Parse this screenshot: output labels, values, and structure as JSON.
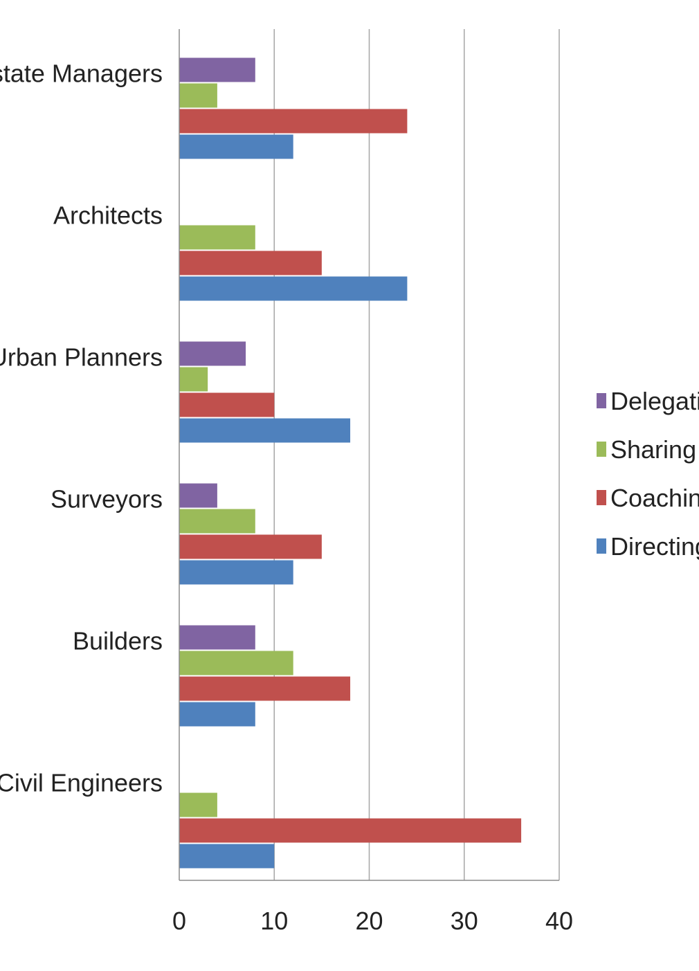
{
  "chart_data": {
    "type": "bar",
    "orientation": "horizontal",
    "categories": [
      "Civil Engineers",
      "Builders",
      "Surveyors",
      "Urban Planners",
      "Architects",
      "Estate Managers"
    ],
    "series": [
      {
        "name": "Directing",
        "color": "#4F81BD",
        "values": [
          10,
          8,
          12,
          18,
          24,
          12
        ]
      },
      {
        "name": "Coaching",
        "color": "#C0504D",
        "values": [
          36,
          18,
          15,
          10,
          15,
          24
        ]
      },
      {
        "name": "Sharing",
        "color": "#9BBB59",
        "values": [
          4,
          12,
          8,
          3,
          8,
          4
        ]
      },
      {
        "name": "Delegating",
        "color": "#8064A2",
        "values": [
          0,
          8,
          4,
          7,
          0,
          8
        ]
      }
    ],
    "xticks": [
      "0",
      "10",
      "20",
      "30",
      "40"
    ],
    "xlim": [
      0,
      40
    ],
    "grid": true,
    "legend": {
      "position": "right",
      "order": [
        "Delegating",
        "Sharing",
        "Coaching",
        "Directing"
      ]
    },
    "title": "",
    "xlabel": "",
    "ylabel": ""
  }
}
